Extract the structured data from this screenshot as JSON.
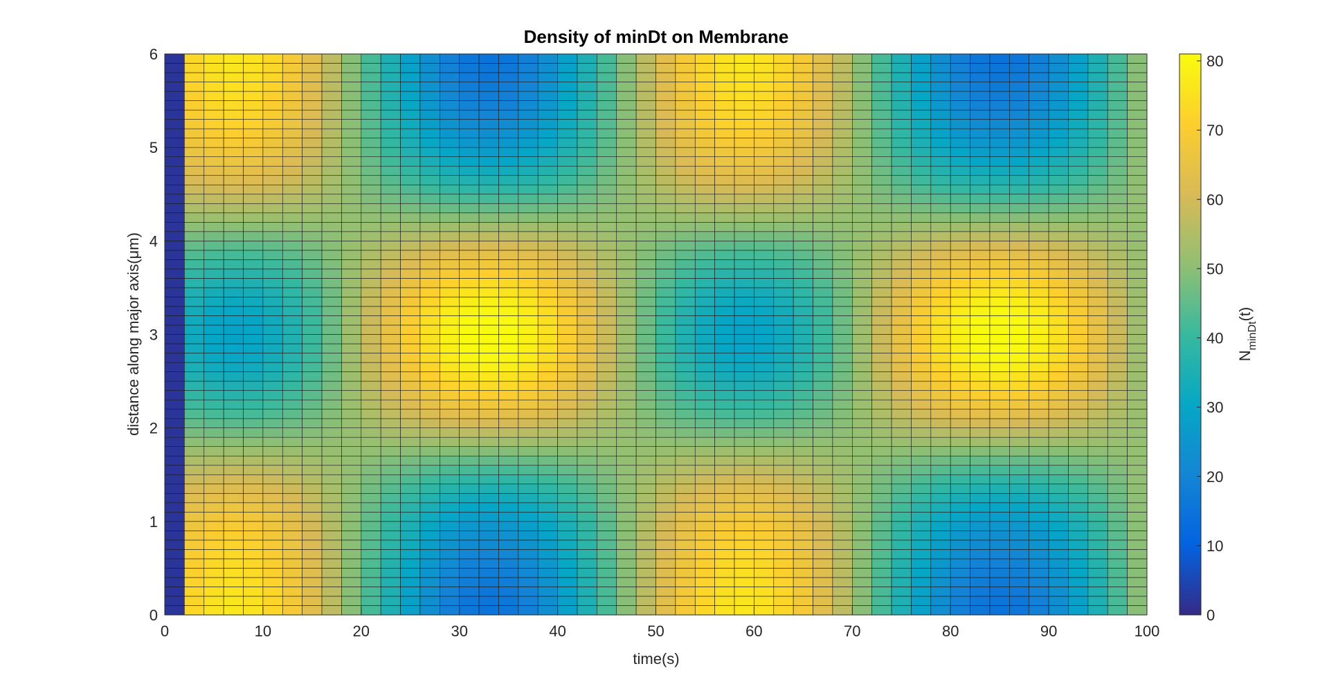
{
  "chart_data": {
    "type": "heatmap",
    "title": "Density of minDt on Membrane",
    "xlabel": "time(s)",
    "ylabel": "distance along major axis(μm)",
    "xlim": [
      0,
      100
    ],
    "ylim": [
      0,
      6
    ],
    "x_ticks": [
      "0",
      "10",
      "20",
      "30",
      "40",
      "50",
      "60",
      "70",
      "80",
      "90",
      "100"
    ],
    "y_ticks": [
      "0",
      "1",
      "2",
      "3",
      "4",
      "5",
      "6"
    ],
    "x_step": 2,
    "y_rows": 60,
    "colormap": "parula",
    "colorbar": {
      "label_main": "N",
      "label_sub": "minDt",
      "label_tail": "(t)",
      "range": [
        0,
        80
      ],
      "ticks": [
        "0",
        "10",
        "20",
        "30",
        "40",
        "50",
        "60",
        "70",
        "80"
      ]
    },
    "description_values": {
      "t0_column_value": 2,
      "peak_value": 80,
      "first_maximum_time": 33,
      "second_maximum_time": 85,
      "oscillation_period": 52,
      "center_y": 3
    }
  }
}
